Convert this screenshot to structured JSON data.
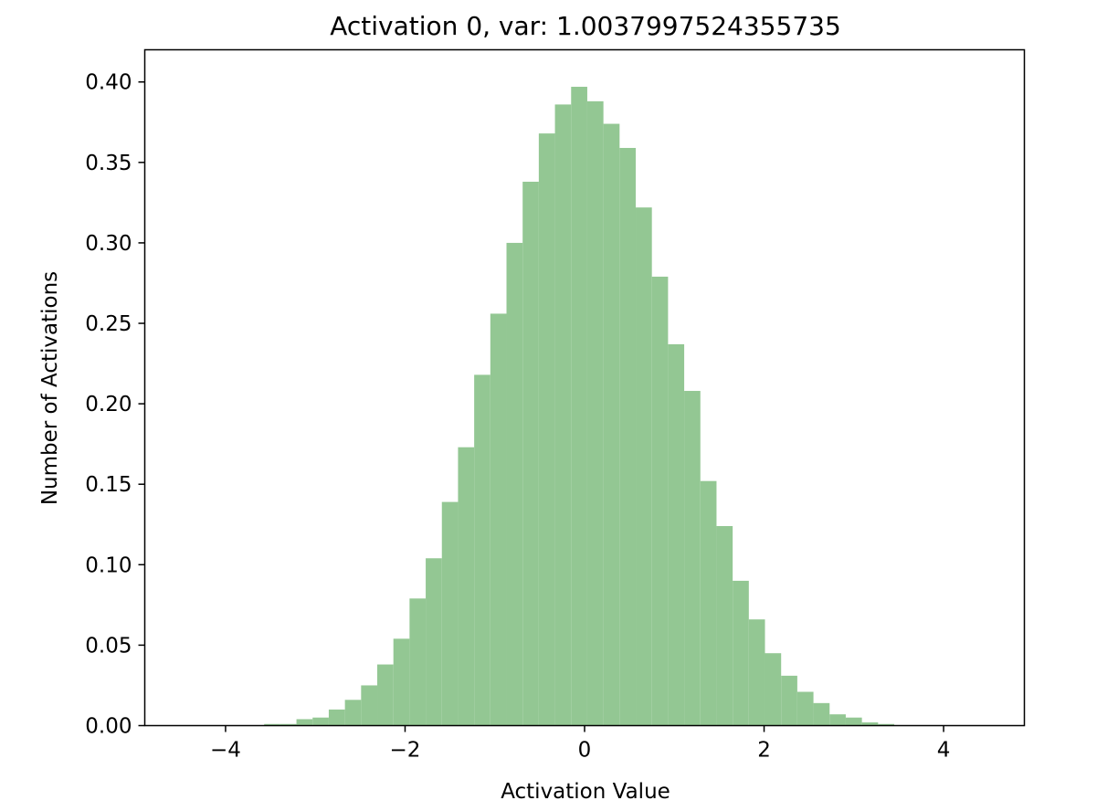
{
  "chart_data": {
    "type": "bar",
    "title": "Activation 0, var: 1.0037997524355735",
    "xlabel": "Activation Value",
    "ylabel": "Number of Activations",
    "xlim": [
      -4.9,
      4.9
    ],
    "ylim": [
      0.0,
      0.42
    ],
    "xticks": [
      -4,
      -2,
      0,
      2,
      4
    ],
    "xtick_labels": [
      "−4",
      "−2",
      "0",
      "2",
      "4"
    ],
    "yticks": [
      0.0,
      0.05,
      0.1,
      0.15,
      0.2,
      0.25,
      0.3,
      0.35,
      0.4
    ],
    "ytick_labels": [
      "0.00",
      "0.05",
      "0.10",
      "0.15",
      "0.20",
      "0.25",
      "0.30",
      "0.35",
      "0.40"
    ],
    "grid": false,
    "color": "#93c793",
    "bins": [
      {
        "x0": -3.57,
        "x1": -3.39,
        "value": 0.001
      },
      {
        "x0": -3.39,
        "x1": -3.21,
        "value": 0.001
      },
      {
        "x0": -3.21,
        "x1": -3.03,
        "value": 0.004
      },
      {
        "x0": -3.03,
        "x1": -2.85,
        "value": 0.005
      },
      {
        "x0": -2.85,
        "x1": -2.67,
        "value": 0.01
      },
      {
        "x0": -2.67,
        "x1": -2.49,
        "value": 0.016
      },
      {
        "x0": -2.49,
        "x1": -2.31,
        "value": 0.025
      },
      {
        "x0": -2.31,
        "x1": -2.13,
        "value": 0.038
      },
      {
        "x0": -2.13,
        "x1": -1.95,
        "value": 0.054
      },
      {
        "x0": -1.95,
        "x1": -1.77,
        "value": 0.079
      },
      {
        "x0": -1.77,
        "x1": -1.59,
        "value": 0.104
      },
      {
        "x0": -1.59,
        "x1": -1.41,
        "value": 0.139
      },
      {
        "x0": -1.41,
        "x1": -1.23,
        "value": 0.173
      },
      {
        "x0": -1.23,
        "x1": -1.05,
        "value": 0.218
      },
      {
        "x0": -1.05,
        "x1": -0.87,
        "value": 0.256
      },
      {
        "x0": -0.87,
        "x1": -0.69,
        "value": 0.3
      },
      {
        "x0": -0.69,
        "x1": -0.51,
        "value": 0.338
      },
      {
        "x0": -0.51,
        "x1": -0.33,
        "value": 0.368
      },
      {
        "x0": -0.33,
        "x1": -0.15,
        "value": 0.386
      },
      {
        "x0": -0.15,
        "x1": 0.03,
        "value": 0.397
      },
      {
        "x0": 0.03,
        "x1": 0.21,
        "value": 0.388
      },
      {
        "x0": 0.21,
        "x1": 0.39,
        "value": 0.374
      },
      {
        "x0": 0.39,
        "x1": 0.57,
        "value": 0.359
      },
      {
        "x0": 0.57,
        "x1": 0.75,
        "value": 0.322
      },
      {
        "x0": 0.75,
        "x1": 0.93,
        "value": 0.279
      },
      {
        "x0": 0.93,
        "x1": 1.11,
        "value": 0.237
      },
      {
        "x0": 1.11,
        "x1": 1.29,
        "value": 0.208
      },
      {
        "x0": 1.29,
        "x1": 1.47,
        "value": 0.152
      },
      {
        "x0": 1.47,
        "x1": 1.65,
        "value": 0.124
      },
      {
        "x0": 1.65,
        "x1": 1.83,
        "value": 0.09
      },
      {
        "x0": 1.83,
        "x1": 2.01,
        "value": 0.066
      },
      {
        "x0": 2.01,
        "x1": 2.19,
        "value": 0.045
      },
      {
        "x0": 2.19,
        "x1": 2.37,
        "value": 0.031
      },
      {
        "x0": 2.37,
        "x1": 2.55,
        "value": 0.021
      },
      {
        "x0": 2.55,
        "x1": 2.73,
        "value": 0.014
      },
      {
        "x0": 2.73,
        "x1": 2.91,
        "value": 0.007
      },
      {
        "x0": 2.91,
        "x1": 3.09,
        "value": 0.005
      },
      {
        "x0": 3.09,
        "x1": 3.27,
        "value": 0.002
      },
      {
        "x0": 3.27,
        "x1": 3.45,
        "value": 0.001
      }
    ]
  }
}
